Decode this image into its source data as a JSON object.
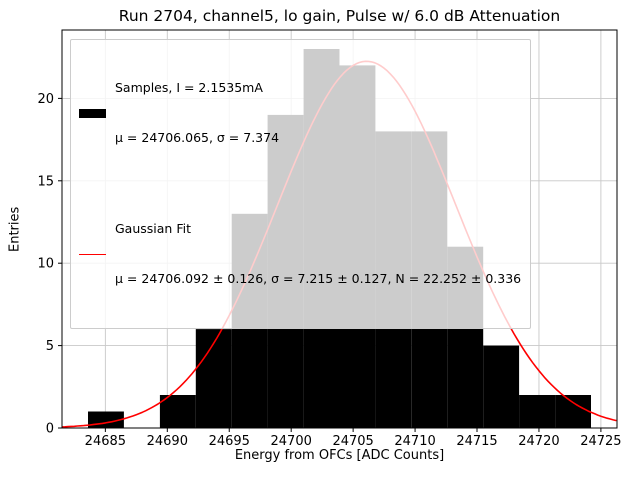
{
  "chart_data": {
    "type": "bar",
    "subtype": "histogram-with-gaussian-fit",
    "title": "Run 2704, channel5, lo gain, Pulse w/ 6.0 dB Attenuation",
    "xlabel": "Energy from OFCs [ADC Counts]",
    "ylabel": "Entries",
    "xlim": [
      24681.5,
      24726.3
    ],
    "ylim": [
      0,
      24.15
    ],
    "xticks": [
      24685,
      24690,
      24695,
      24700,
      24705,
      24710,
      24715,
      24720,
      24725
    ],
    "yticks": [
      0,
      5,
      10,
      15,
      20
    ],
    "grid": true,
    "grid_color": "#c8c8c8",
    "bar_color": "#000000",
    "fit_color": "#ff0000",
    "bin_edges": [
      24683.6,
      24686.5,
      24689.4,
      24692.3,
      24695.2,
      24698.1,
      24701.0,
      24703.9,
      24706.8,
      24709.7,
      24712.6,
      24715.5,
      24718.4,
      24721.3,
      24724.2
    ],
    "counts": [
      1,
      0,
      2,
      6,
      13,
      19,
      23,
      22,
      18,
      18,
      11,
      5,
      2,
      2
    ],
    "gaussian_fit": {
      "mu": 24706.092,
      "sigma": 7.215,
      "amplitude": 22.252
    },
    "legend": {
      "position": "upper left",
      "entries": [
        {
          "swatch": "black-bar",
          "lines": [
            "Samples, I = 2.1535mA",
            "μ = 24706.065, σ = 7.374"
          ]
        },
        {
          "swatch": "red-line",
          "lines": [
            "Gaussian Fit",
            "μ = 24706.092 ± 0.126, σ = 7.215 ± 0.127, N = 22.252 ± 0.336"
          ]
        }
      ]
    }
  }
}
